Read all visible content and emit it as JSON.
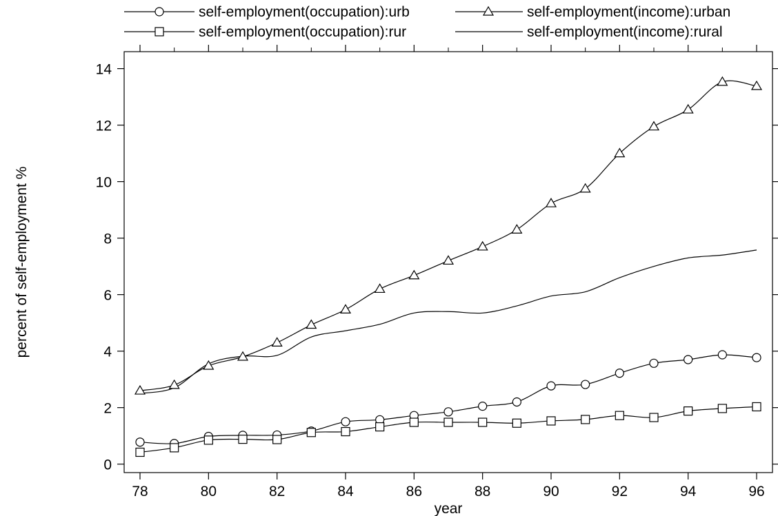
{
  "chart_data": {
    "type": "line",
    "title": "",
    "xlabel": "year",
    "ylabel": "percent of self-employment %",
    "xlim": [
      78,
      96
    ],
    "ylim": [
      -0.3,
      14.6
    ],
    "x_ticks": [
      78,
      80,
      82,
      84,
      86,
      88,
      90,
      92,
      94,
      96
    ],
    "x_tick_labels": [
      "78",
      "80",
      "82",
      "84",
      "86",
      "88",
      "90",
      "92",
      "94",
      "96"
    ],
    "y_ticks": [
      0,
      2,
      4,
      6,
      8,
      10,
      12,
      14
    ],
    "y_tick_labels": [
      "0",
      "2",
      "4",
      "6",
      "8",
      "10",
      "12",
      "14"
    ],
    "grid": false,
    "legend_position": "top",
    "x": [
      78,
      79,
      80,
      81,
      82,
      83,
      84,
      85,
      86,
      87,
      88,
      89,
      90,
      91,
      92,
      93,
      94,
      95,
      96
    ],
    "series": [
      {
        "name": "self-employment(occupation):urb",
        "marker": "circle",
        "values": [
          0.78,
          0.73,
          0.98,
          1.02,
          1.03,
          1.17,
          1.5,
          1.57,
          1.72,
          1.85,
          2.05,
          2.2,
          2.77,
          2.82,
          3.22,
          3.57,
          3.7,
          3.87,
          3.77
        ]
      },
      {
        "name": "self-employment(occupation):rur",
        "marker": "square",
        "values": [
          0.42,
          0.58,
          0.85,
          0.88,
          0.87,
          1.12,
          1.15,
          1.32,
          1.48,
          1.48,
          1.48,
          1.45,
          1.53,
          1.58,
          1.72,
          1.65,
          1.88,
          1.97,
          2.03
        ]
      },
      {
        "name": "self-employment(income):urban",
        "marker": "triangle",
        "values": [
          2.6,
          2.8,
          3.48,
          3.8,
          4.3,
          4.93,
          5.47,
          6.2,
          6.68,
          7.2,
          7.7,
          8.3,
          9.23,
          9.75,
          11.0,
          11.95,
          12.55,
          13.53,
          13.38
        ]
      },
      {
        "name": "self-employment(income):rural",
        "marker": "none",
        "values": [
          2.5,
          2.7,
          3.55,
          3.82,
          3.85,
          4.5,
          4.72,
          4.95,
          5.35,
          5.4,
          5.35,
          5.6,
          5.95,
          6.1,
          6.6,
          7.0,
          7.3,
          7.4,
          7.58
        ]
      }
    ]
  }
}
